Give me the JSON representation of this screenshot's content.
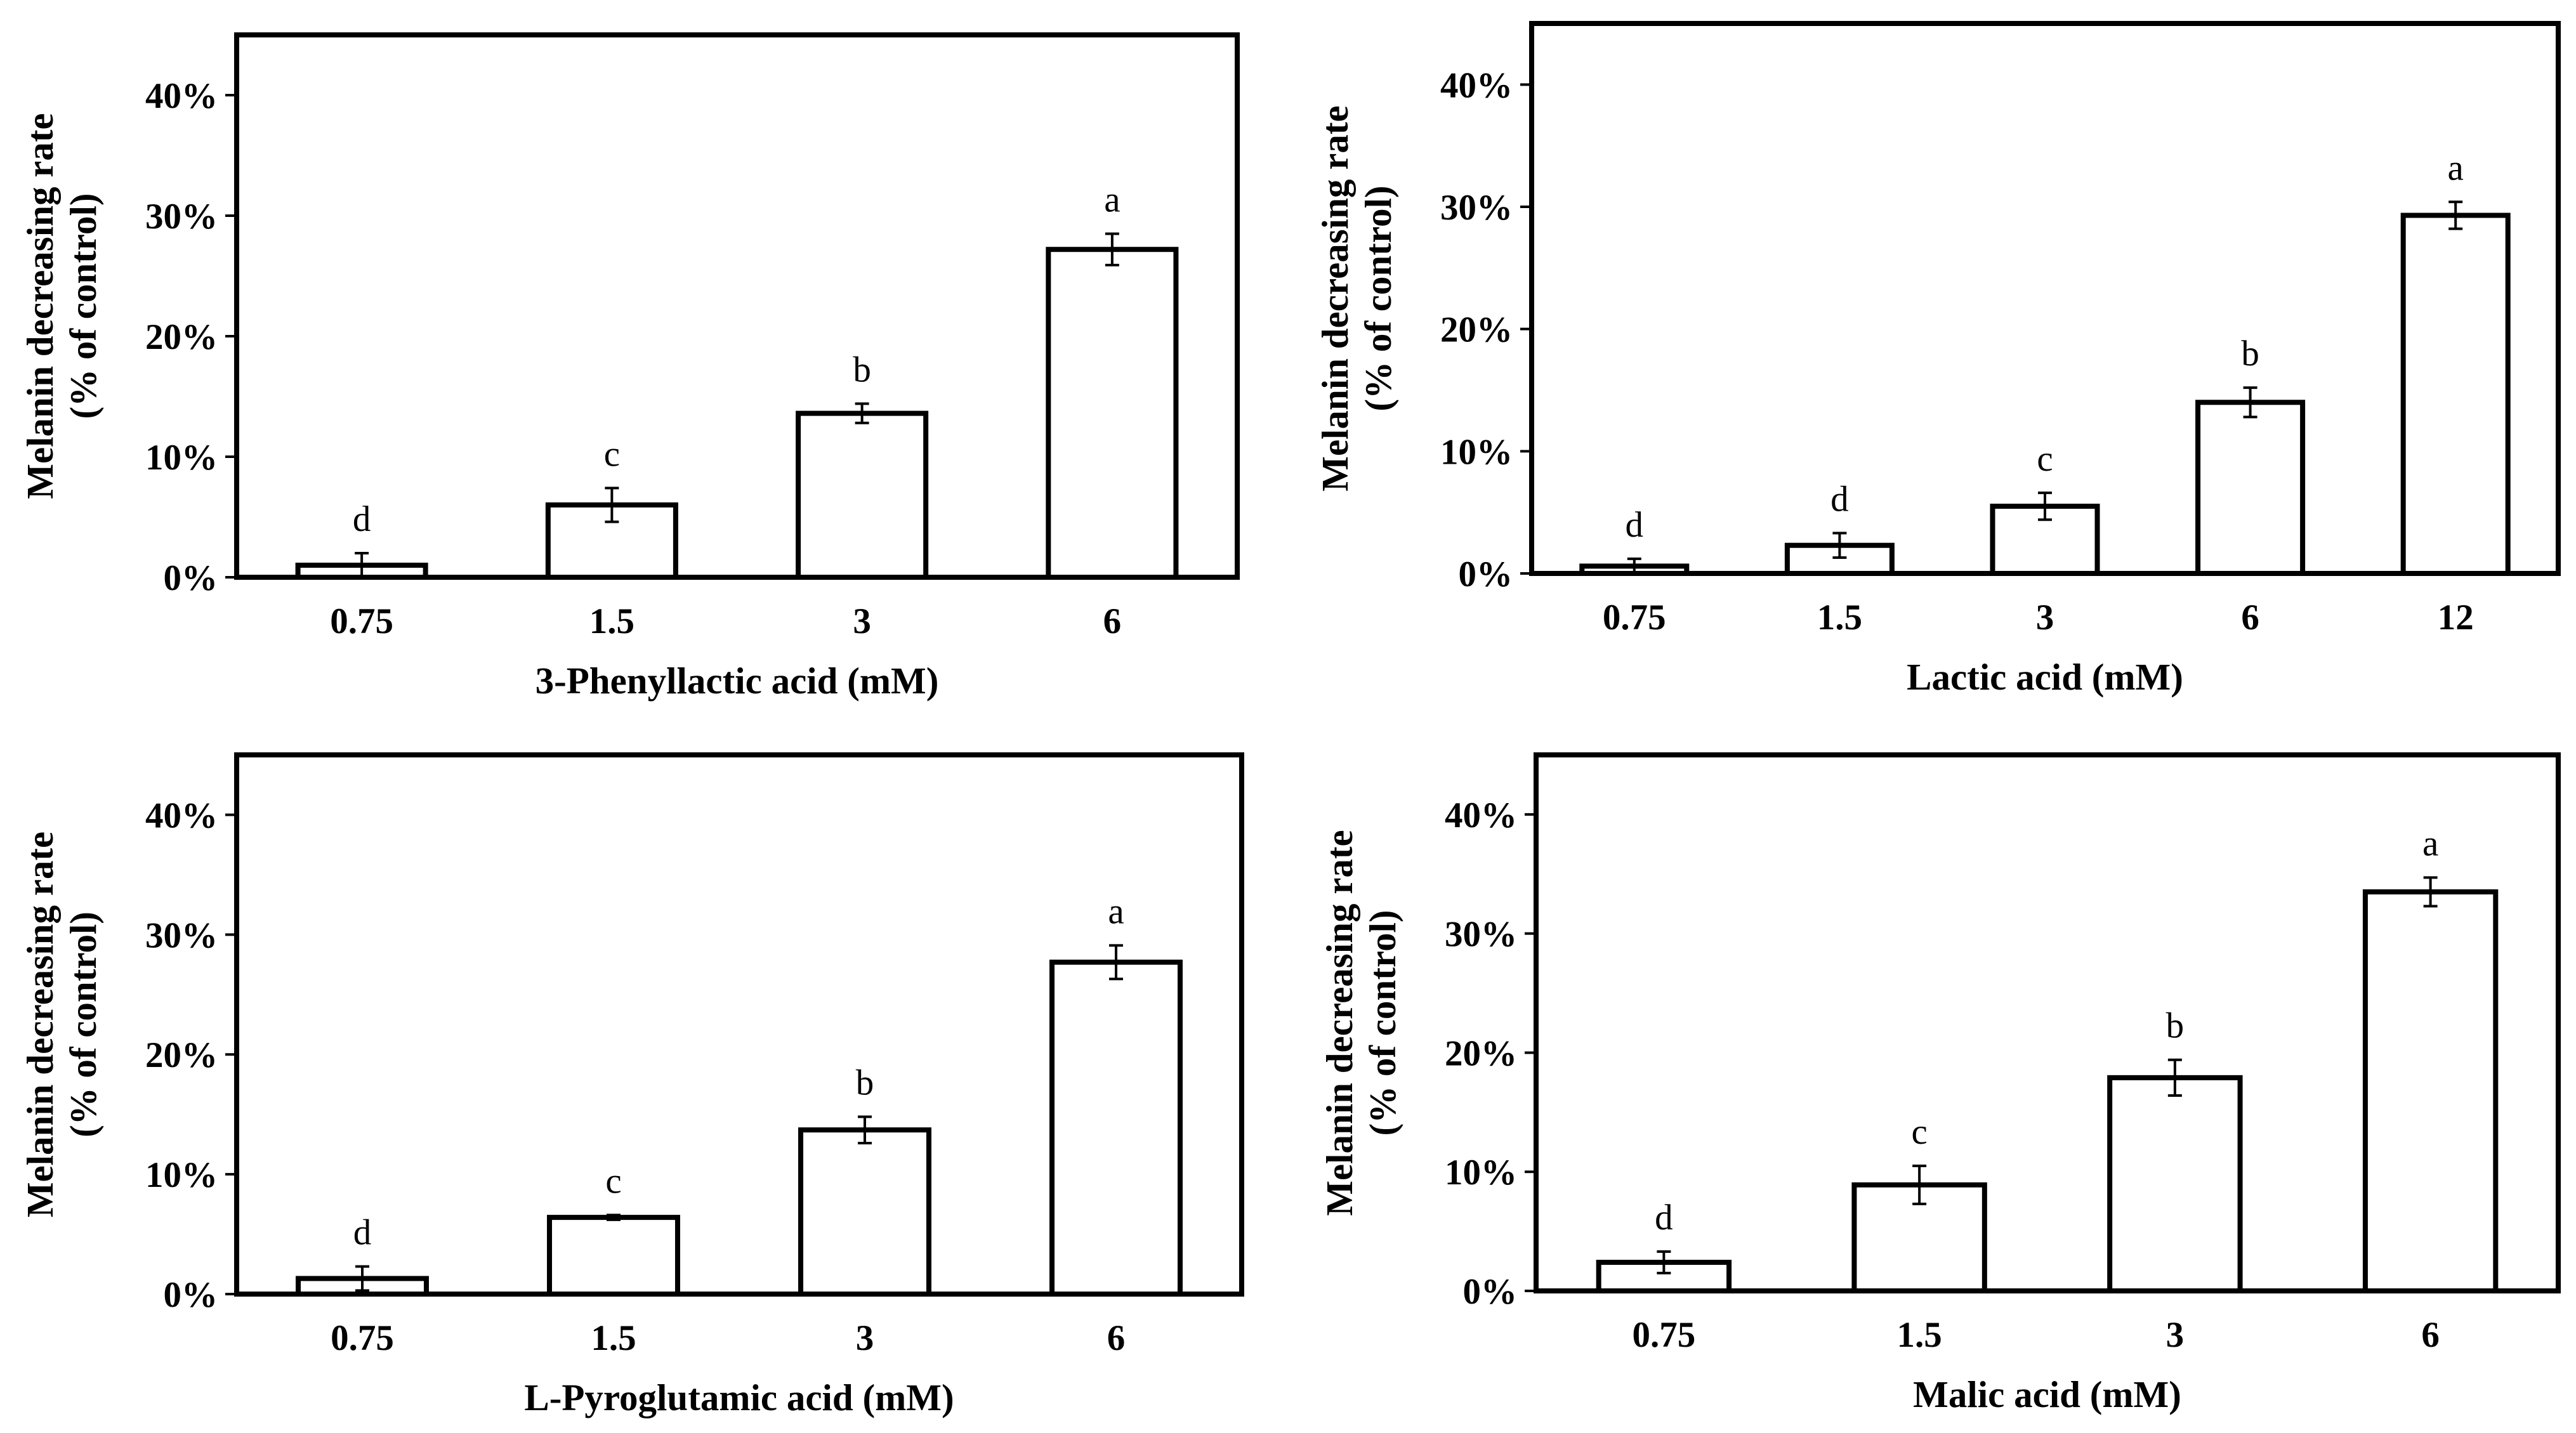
{
  "chart_data": [
    {
      "type": "bar",
      "title": "",
      "categories": [
        "0.75",
        "1.5",
        "3",
        "6"
      ],
      "values": [
        1.0,
        6.0,
        13.6,
        27.2
      ],
      "errors": [
        1.0,
        1.4,
        0.8,
        1.3
      ],
      "significance": [
        "d",
        "c",
        "b",
        "a"
      ],
      "xlabel": "3-Phenyllactic acid (mM)",
      "ylabel": [
        "Melanin decreasing rate",
        "(% of control)"
      ],
      "ylim": [
        0,
        45
      ],
      "yticks": [
        0,
        10,
        20,
        30,
        40
      ],
      "ytick_labels": [
        "0%",
        "10%",
        "20%",
        "30%",
        "40%"
      ],
      "grid": false,
      "colors": {
        "bar_fill": "#ffffff",
        "bar_edge": "#000000"
      }
    },
    {
      "type": "bar",
      "title": "",
      "categories": [
        "0.75",
        "1.5",
        "3",
        "6",
        "12"
      ],
      "values": [
        0.6,
        2.3,
        5.5,
        14.0,
        29.3
      ],
      "errors": [
        0.6,
        1.0,
        1.1,
        1.2,
        1.1
      ],
      "significance": [
        "d",
        "d",
        "c",
        "b",
        "a"
      ],
      "xlabel": "Lactic acid (mM)",
      "ylabel": [
        "Melanin decreasing rate",
        "(% of control)"
      ],
      "ylim": [
        0,
        45
      ],
      "yticks": [
        0,
        10,
        20,
        30,
        40
      ],
      "ytick_labels": [
        "0%",
        "10%",
        "20%",
        "30%",
        "40%"
      ],
      "grid": false,
      "colors": {
        "bar_fill": "#ffffff",
        "bar_edge": "#000000"
      }
    },
    {
      "type": "bar",
      "title": "",
      "categories": [
        "0.75",
        "1.5",
        "3",
        "6"
      ],
      "values": [
        1.3,
        6.4,
        13.7,
        27.7
      ],
      "errors": [
        1.0,
        0.2,
        1.1,
        1.4
      ],
      "significance": [
        "d",
        "c",
        "b",
        "a"
      ],
      "xlabel": "L-Pyroglutamic acid (mM)",
      "ylabel": [
        "Melanin decreasing rate",
        "(% of control)"
      ],
      "ylim": [
        0,
        45
      ],
      "yticks": [
        0,
        10,
        20,
        30,
        40
      ],
      "ytick_labels": [
        "0%",
        "10%",
        "20%",
        "30%",
        "40%"
      ],
      "grid": false,
      "colors": {
        "bar_fill": "#ffffff",
        "bar_edge": "#000000"
      }
    },
    {
      "type": "bar",
      "title": "",
      "categories": [
        "0.75",
        "1.5",
        "3",
        "6"
      ],
      "values": [
        2.4,
        8.9,
        17.9,
        33.5
      ],
      "errors": [
        0.9,
        1.6,
        1.5,
        1.2
      ],
      "significance": [
        "d",
        "c",
        "b",
        "a"
      ],
      "xlabel": "Malic acid (mM)",
      "ylabel": [
        "Melanin decreasing rate",
        "(% of control)"
      ],
      "ylim": [
        0,
        45
      ],
      "yticks": [
        0,
        10,
        20,
        30,
        40
      ],
      "ytick_labels": [
        "0%",
        "10%",
        "20%",
        "30%",
        "40%"
      ],
      "grid": false,
      "colors": {
        "bar_fill": "#ffffff",
        "bar_edge": "#000000"
      }
    }
  ]
}
